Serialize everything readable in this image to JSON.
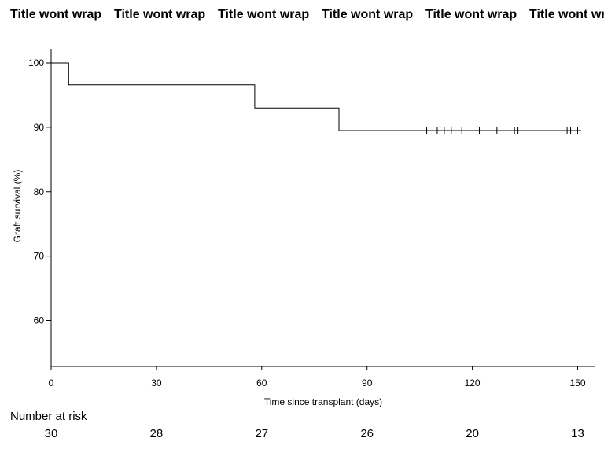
{
  "chart_data": {
    "type": "line",
    "title_repeats": [
      "Title wont wrap",
      "Title wont wrap",
      "Title wont wrap",
      "Title wont wrap",
      "Title wont wrap",
      "Title wont wrap"
    ],
    "xlabel": "Time since transplant (days)",
    "ylabel": "Graft survival (%)",
    "xlim": [
      0,
      155
    ],
    "ylim": [
      52.5,
      102
    ],
    "xticks": [
      0,
      30,
      60,
      90,
      120,
      150
    ],
    "yticks": [
      60,
      70,
      80,
      90,
      100
    ],
    "grid": false,
    "series": [
      {
        "step_points": [
          [
            0,
            100
          ],
          [
            5,
            100
          ],
          [
            5,
            96.6
          ],
          [
            58,
            96.6
          ],
          [
            58,
            93.0
          ],
          [
            82,
            93.0
          ],
          [
            82,
            89.5
          ],
          [
            151,
            89.5
          ]
        ],
        "censor_times": [
          107,
          110,
          112,
          114,
          117,
          122,
          127,
          132,
          133,
          147,
          148,
          150
        ]
      }
    ],
    "risk_table": {
      "label": "Number at risk",
      "times": [
        0,
        30,
        60,
        90,
        120,
        150
      ],
      "counts": [
        "30",
        "28",
        "27",
        "26",
        "20",
        "13"
      ]
    }
  }
}
